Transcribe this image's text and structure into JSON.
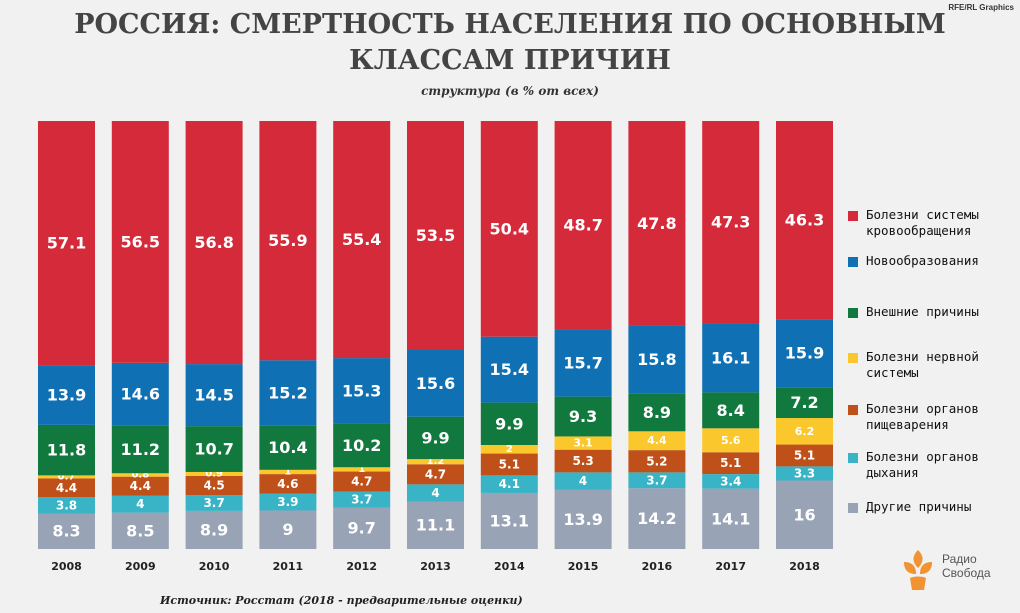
{
  "credit": "RFE/RL Graphics",
  "title_line1": "РОССИЯ: СМЕРТНОСТЬ НАСЕЛЕНИЯ ПО ОСНОВНЫМ",
  "title_line2": "КЛАССАМ ПРИЧИН",
  "subtitle": "структура (в % от всех)",
  "source": "Источник: Росстат (2018 - предварительные  оценки)",
  "logo": {
    "line1": "Радио",
    "line2": "Свобода",
    "icon": "rfe-logo-icon"
  },
  "legend": [
    {
      "label": "Болезни системы кровообращения",
      "color": "#d42a3a"
    },
    {
      "label": "Новообразования",
      "color": "#0f70b4"
    },
    {
      "label": "Внешние причины",
      "color": "#11783e"
    },
    {
      "label": "Болезни нервной системы",
      "color": "#fac72d"
    },
    {
      "label": "Болезни органов пищеварения",
      "color": "#c0501a"
    },
    {
      "label": "Болезни органов дыхания",
      "color": "#39b3c6"
    },
    {
      "label": "Другие причины",
      "color": "#98a3b5"
    }
  ],
  "chart_data": {
    "type": "bar",
    "stacked": true,
    "categories": [
      "2008",
      "2009",
      "2010",
      "2011",
      "2012",
      "2013",
      "2014",
      "2015",
      "2016",
      "2017",
      "2018"
    ],
    "series": [
      {
        "name": "Другие причины",
        "color": "#98a3b5",
        "values": [
          8.3,
          8.5,
          8.9,
          9,
          9.7,
          11.1,
          13.1,
          13.9,
          14.2,
          14.1,
          16
        ]
      },
      {
        "name": "Болезни органов дыхания",
        "color": "#39b3c6",
        "values": [
          3.8,
          4,
          3.7,
          3.9,
          3.7,
          4,
          4.1,
          4,
          3.7,
          3.4,
          3.3
        ]
      },
      {
        "name": "Болезни органов пищеварения",
        "color": "#c0501a",
        "values": [
          4.4,
          4.4,
          4.5,
          4.6,
          4.7,
          4.7,
          5.1,
          5.3,
          5.2,
          5.1,
          5.1
        ]
      },
      {
        "name": "Болезни нервной системы",
        "color": "#fac72d",
        "values": [
          0.7,
          0.8,
          0.9,
          1,
          1,
          1.2,
          2,
          3.1,
          4.4,
          5.6,
          6.2
        ]
      },
      {
        "name": "Внешние причины",
        "color": "#11783e",
        "values": [
          11.8,
          11.2,
          10.7,
          10.4,
          10.2,
          9.9,
          9.9,
          9.3,
          8.9,
          8.4,
          7.2
        ]
      },
      {
        "name": "Новообразования",
        "color": "#0f70b4",
        "values": [
          13.9,
          14.6,
          14.5,
          15.2,
          15.3,
          15.6,
          15.4,
          15.7,
          15.8,
          16.1,
          15.9
        ]
      },
      {
        "name": "Болезни системы кровообращения",
        "color": "#d42a3a",
        "values": [
          57.1,
          56.5,
          56.8,
          55.9,
          55.4,
          53.5,
          50.4,
          48.7,
          47.8,
          47.3,
          46.3
        ]
      }
    ],
    "ylim": [
      0,
      100
    ],
    "legend_position": "right"
  }
}
